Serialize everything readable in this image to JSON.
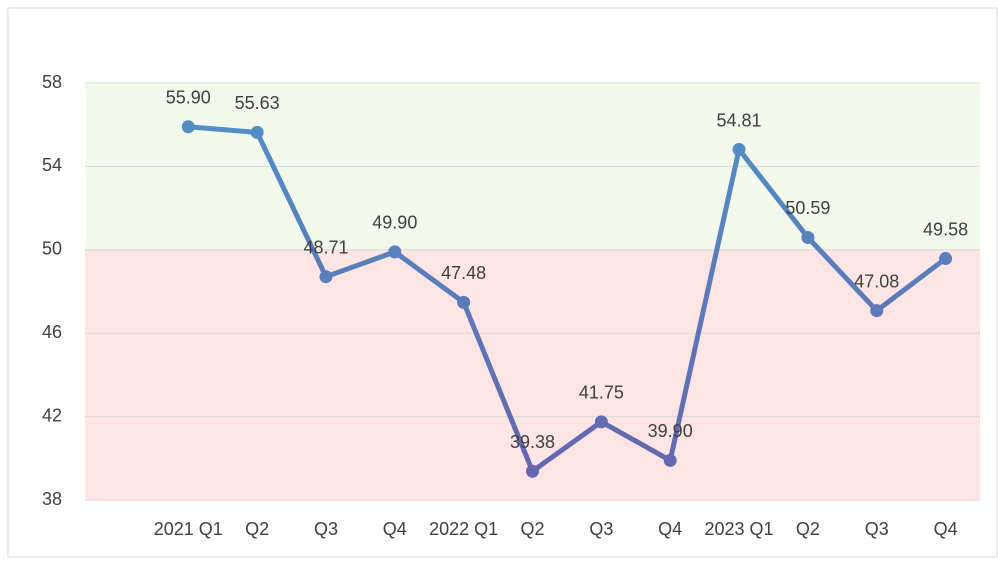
{
  "chart_data": {
    "type": "line",
    "categories": [
      null,
      "2021 Q1",
      "Q2",
      "Q3",
      "Q4",
      "2022 Q1",
      "Q2",
      "Q3",
      "Q4",
      "2023 Q1",
      "Q2",
      "Q3",
      "Q4"
    ],
    "series": [
      {
        "color": "#5b7fbd",
        "values": [
          null,
          55.9,
          55.63,
          48.71,
          49.9,
          47.48,
          39.38,
          41.75,
          39.9,
          54.81,
          50.59,
          47.08,
          49.58
        ],
        "value_labels": [
          null,
          "55.90",
          "55.63",
          "48.71",
          "49.90",
          "47.48",
          "39.38",
          "41.75",
          "39.90",
          "54.81",
          "50.59",
          "47.08",
          "49.58"
        ]
      }
    ],
    "bands": [
      {
        "from": 50,
        "to": 58,
        "color": "#f2f8ec"
      },
      {
        "from": 38,
        "to": 50,
        "color": "#fde4e5"
      }
    ],
    "ylim": [
      38,
      58
    ],
    "yticks": [
      38,
      42,
      46,
      50,
      54,
      58
    ],
    "grid": true
  }
}
